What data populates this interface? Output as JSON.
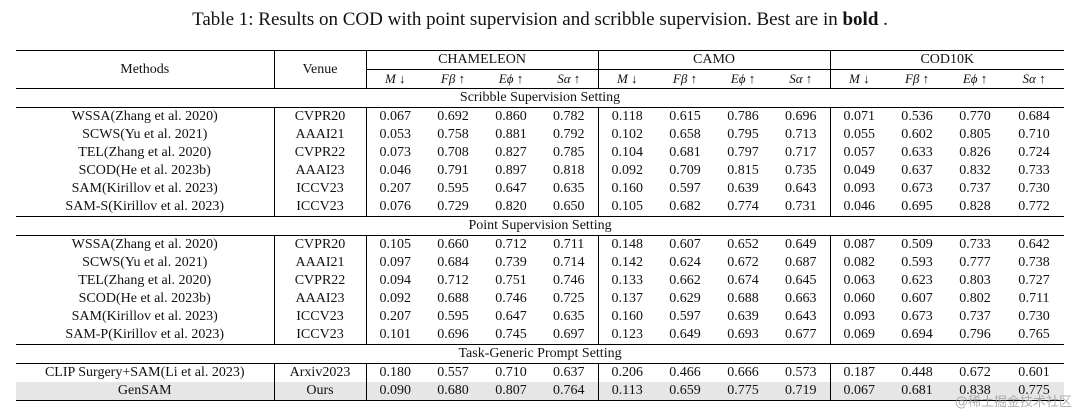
{
  "caption": {
    "prefix": "Table 1: Results on COD with point supervision and scribble supervision. Best are in",
    "bold_word": "bold",
    "suffix": " ."
  },
  "header": {
    "methods": "Methods",
    "venue": "Venue",
    "groups": [
      "CHAMELEON",
      "CAMO",
      "COD10K"
    ],
    "metrics": [
      "M ↓",
      "Fβ ↑",
      "Eϕ ↑",
      "Sα ↑"
    ]
  },
  "sections": [
    {
      "title": "Scribble Supervision Setting",
      "rows": [
        {
          "method": "WSSA(Zhang et al. 2020)",
          "venue": "CVPR20",
          "values": [
            "0.067",
            "0.692",
            "0.860",
            "0.782",
            "0.118",
            "0.615",
            "0.786",
            "0.696",
            "0.071",
            "0.536",
            "0.770",
            "0.684"
          ],
          "bold": []
        },
        {
          "method": "SCWS(Yu et al. 2021)",
          "venue": "AAAI21",
          "values": [
            "0.053",
            "0.758",
            "0.881",
            "0.792",
            "0.102",
            "0.658",
            "0.795",
            "0.713",
            "0.055",
            "0.602",
            "0.805",
            "0.710"
          ],
          "bold": []
        },
        {
          "method": "TEL(Zhang et al. 2020)",
          "venue": "CVPR22",
          "values": [
            "0.073",
            "0.708",
            "0.827",
            "0.785",
            "0.104",
            "0.681",
            "0.797",
            "0.717",
            "0.057",
            "0.633",
            "0.826",
            "0.724"
          ],
          "bold": []
        },
        {
          "method": "SCOD(He et al. 2023b)",
          "venue": "AAAI23",
          "values": [
            "0.046",
            "0.791",
            "0.897",
            "0.818",
            "0.092",
            "0.709",
            "0.815",
            "0.735",
            "0.049",
            "0.637",
            "0.832",
            "0.733"
          ],
          "bold": [
            0,
            1,
            2,
            3,
            4,
            5,
            6,
            7,
            10
          ]
        },
        {
          "method": "SAM(Kirillov et al. 2023)",
          "venue": "ICCV23",
          "values": [
            "0.207",
            "0.595",
            "0.647",
            "0.635",
            "0.160",
            "0.597",
            "0.639",
            "0.643",
            "0.093",
            "0.673",
            "0.737",
            "0.730"
          ],
          "bold": []
        },
        {
          "method": "SAM-S(Kirillov et al. 2023)",
          "venue": "ICCV23",
          "values": [
            "0.076",
            "0.729",
            "0.820",
            "0.650",
            "0.105",
            "0.682",
            "0.774",
            "0.731",
            "0.046",
            "0.695",
            "0.828",
            "0.772"
          ],
          "bold": [
            8,
            9,
            11
          ]
        }
      ]
    },
    {
      "title": "Point Supervision Setting",
      "rows": [
        {
          "method": "WSSA(Zhang et al. 2020)",
          "venue": "CVPR20",
          "values": [
            "0.105",
            "0.660",
            "0.712",
            "0.711",
            "0.148",
            "0.607",
            "0.652",
            "0.649",
            "0.087",
            "0.509",
            "0.733",
            "0.642"
          ],
          "bold": []
        },
        {
          "method": "SCWS(Yu et al. 2021)",
          "venue": "AAAI21",
          "values": [
            "0.097",
            "0.684",
            "0.739",
            "0.714",
            "0.142",
            "0.624",
            "0.672",
            "0.687",
            "0.082",
            "0.593",
            "0.777",
            "0.738"
          ],
          "bold": [
            7
          ]
        },
        {
          "method": "TEL(Zhang et al. 2020)",
          "venue": "CVPR22",
          "values": [
            "0.094",
            "0.712",
            "0.751",
            "0.746",
            "0.133",
            "0.662",
            "0.674",
            "0.645",
            "0.063",
            "0.623",
            "0.803",
            "0.727"
          ],
          "bold": [
            1,
            2,
            3,
            5,
            10
          ]
        },
        {
          "method": "SCOD(He et al. 2023b)",
          "venue": "AAAI23",
          "values": [
            "0.092",
            "0.688",
            "0.746",
            "0.725",
            "0.137",
            "0.629",
            "0.688",
            "0.663",
            "0.060",
            "0.607",
            "0.802",
            "0.711"
          ],
          "bold": [
            0,
            8
          ]
        },
        {
          "method": "SAM(Kirillov et al. 2023)",
          "venue": "ICCV23",
          "values": [
            "0.207",
            "0.595",
            "0.647",
            "0.635",
            "0.160",
            "0.597",
            "0.639",
            "0.643",
            "0.093",
            "0.673",
            "0.737",
            "0.730"
          ],
          "bold": []
        },
        {
          "method": "SAM-P(Kirillov et al. 2023)",
          "venue": "ICCV23",
          "values": [
            "0.101",
            "0.696",
            "0.745",
            "0.697",
            "0.123",
            "0.649",
            "0.693",
            "0.677",
            "0.069",
            "0.694",
            "0.796",
            "0.765"
          ],
          "bold": [
            4,
            6,
            9,
            11
          ]
        }
      ]
    },
    {
      "title": "Task-Generic Prompt Setting",
      "rows": [
        {
          "method": "CLIP Surgery+SAM(Li et al. 2023)",
          "venue": "Arxiv2023",
          "values": [
            "0.180",
            "0.557",
            "0.710",
            "0.637",
            "0.206",
            "0.466",
            "0.666",
            "0.573",
            "0.187",
            "0.448",
            "0.672",
            "0.601"
          ],
          "bold": []
        },
        {
          "method": "GenSAM",
          "venue": "Ours",
          "values": [
            "0.090",
            "0.680",
            "0.807",
            "0.764",
            "0.113",
            "0.659",
            "0.775",
            "0.719",
            "0.067",
            "0.681",
            "0.838",
            "0.775"
          ],
          "bold": [
            0,
            1,
            2,
            3,
            4,
            5,
            6,
            7,
            8,
            9,
            10,
            11
          ],
          "highlight": true
        }
      ]
    }
  ],
  "watermark": "@稀土掘金技术社区"
}
